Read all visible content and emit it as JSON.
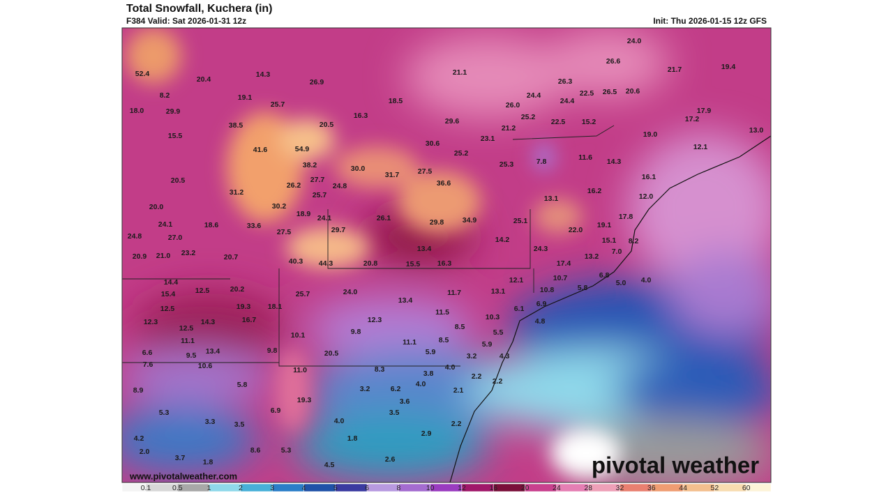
{
  "header": {
    "title": "Total Snowfall, Kuchera (in)",
    "valid": "F384 Valid: Sat 2026-01-31 12z",
    "init": "Init: Thu 2026-01-15 12z GFS"
  },
  "watermark": "www.pivotalweather.com",
  "logo": "pivotal weather",
  "map": {
    "labels": [
      "52.4",
      "20.4",
      "14.3",
      "21.1",
      "24.0",
      "26.6",
      "21.7",
      "19.4",
      "8.2",
      "19.1",
      "26.9",
      "18.5",
      "26.3",
      "24.4",
      "22.5",
      "26.5",
      "20.6",
      "18.0",
      "29.9",
      "25.7",
      "16.3",
      "26.0",
      "24.4",
      "17.9",
      "38.5",
      "20.5",
      "29.6",
      "25.2",
      "22.5",
      "15.2",
      "17.2",
      "15.5",
      "21.2",
      "19.0",
      "13.0",
      "41.6",
      "54.9",
      "30.6",
      "23.1",
      "12.1",
      "38.2",
      "30.0",
      "25.2",
      "11.6",
      "14.3",
      "7.8",
      "20.5",
      "31.7",
      "27.5",
      "25.3",
      "16.1",
      "31.2",
      "26.2",
      "27.7",
      "24.8",
      "36.6",
      "16.2",
      "25.7",
      "13.1",
      "12.0",
      "20.0",
      "30.2",
      "18.9",
      "24.1",
      "26.1",
      "29.8",
      "34.9",
      "25.1",
      "17.8",
      "24.1",
      "18.6",
      "33.6",
      "19.1",
      "22.0",
      "24.8",
      "27.0",
      "27.5",
      "29.7",
      "13.4",
      "14.2",
      "15.1",
      "8.2",
      "20.9",
      "21.0",
      "23.2",
      "20.7",
      "24.3",
      "7.0",
      "40.3",
      "44.3",
      "20.8",
      "15.5",
      "16.3",
      "17.4",
      "13.2",
      "14.4",
      "12.1",
      "10.7",
      "6.8",
      "4.0",
      "5.0",
      "15.4",
      "12.5",
      "20.2",
      "25.7",
      "24.0",
      "11.7",
      "13.1",
      "10.8",
      "5.8",
      "12.5",
      "19.3",
      "18.1",
      "13.4",
      "6.1",
      "6.9",
      "12.3",
      "14.3",
      "16.7",
      "11.5",
      "10.3",
      "4.8",
      "12.5",
      "9.8",
      "12.3",
      "8.5",
      "5.5",
      "11.1",
      "10.1",
      "11.1",
      "8.5",
      "5.9",
      "6.6",
      "9.5",
      "13.4",
      "9.8",
      "20.5",
      "5.9",
      "4.3",
      "7.6",
      "10.6",
      "11.0",
      "4.0",
      "3.2",
      "8.3",
      "3.8",
      "2.2",
      "2.2",
      "8.9",
      "5.8",
      "3.2",
      "6.2",
      "4.0",
      "2.1",
      "19.3",
      "3.6",
      "5.3",
      "6.9",
      "3.5",
      "3.3",
      "3.5",
      "4.0",
      "2.2",
      "4.2",
      "1.8",
      "2.9",
      "2.0",
      "8.6",
      "5.3",
      "3.7",
      "1.8",
      "2.6",
      "4.5"
    ]
  },
  "colorbar": {
    "ticks": [
      "0.1",
      "0.5",
      "1",
      "2",
      "3",
      "4",
      "5",
      "6",
      "8",
      "10",
      "12",
      "16",
      "20",
      "24",
      "28",
      "32",
      "36",
      "44",
      "52",
      "60"
    ],
    "colors": [
      "#f4f4f4",
      "#d8d8d8",
      "#a8a8a8",
      "#8fd8ea",
      "#48b0d8",
      "#2a7ec8",
      "#1f52a8",
      "#3a3aa0",
      "#b89ae0",
      "#a46cd0",
      "#9a3cc0",
      "#a0186a",
      "#7a0f3a",
      "#c9408e",
      "#e57fb4",
      "#eea0b8",
      "#e98070",
      "#ef9d72",
      "#f4bf8e",
      "#f8dcb0",
      "#fdf3d8"
    ]
  }
}
